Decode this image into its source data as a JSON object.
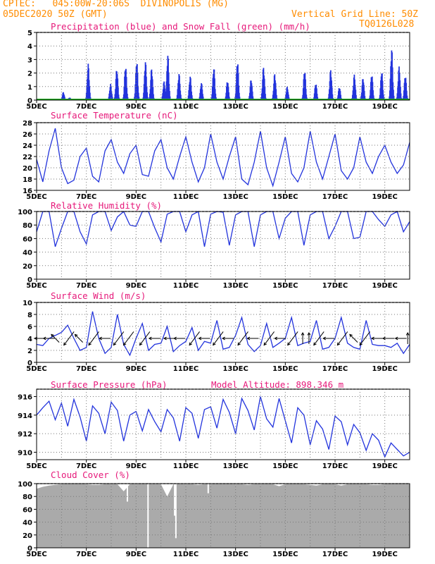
{
  "header": {
    "line1_left": "CPTEC:   045:00W-20:06S  DIVINOPOLIS (MG)",
    "line2_left": "05DEC2020 50Z (GMT)",
    "line2_right": "Vertical Grid Line: 50Z",
    "line3_right": "TQ0126L028"
  },
  "colors": {
    "series": "#2233dd",
    "snow": "#22aa22",
    "title": "#e6197a",
    "header": "#ff8c00",
    "cloud": "#aaaaaa"
  },
  "chart_data": [
    {
      "type": "bar",
      "title": "Precipitation (blue) and Snow Fall (green) (mm/h)",
      "x_tick_labels": [
        "5DEC",
        "7DEC",
        "9DEC",
        "11DEC",
        "13DEC",
        "15DEC",
        "17DEC",
        "19DEC"
      ],
      "ylim": [
        0,
        5
      ],
      "y_ticks": [
        0,
        1,
        2,
        3,
        4,
        5
      ],
      "grid": true,
      "snow_values": "all 0",
      "bursts": [
        {
          "day": 1.05,
          "peak": 0.6
        },
        {
          "day": 1.3,
          "peak": 0.2
        },
        {
          "day": 2.05,
          "peak": 2.7
        },
        {
          "day": 2.95,
          "peak": 1.2
        },
        {
          "day": 3.2,
          "peak": 2.4
        },
        {
          "day": 3.55,
          "peak": 2.6
        },
        {
          "day": 4.0,
          "peak": 3.0
        },
        {
          "day": 4.35,
          "peak": 2.9
        },
        {
          "day": 4.6,
          "peak": 2.4
        },
        {
          "day": 5.1,
          "peak": 1.4
        },
        {
          "day": 5.25,
          "peak": 3.4
        },
        {
          "day": 5.7,
          "peak": 2.0
        },
        {
          "day": 6.15,
          "peak": 1.8
        },
        {
          "day": 6.6,
          "peak": 1.3
        },
        {
          "day": 7.1,
          "peak": 2.5
        },
        {
          "day": 7.65,
          "peak": 1.5
        },
        {
          "day": 8.05,
          "peak": 3.0
        },
        {
          "day": 8.6,
          "peak": 1.6
        },
        {
          "day": 9.1,
          "peak": 2.5
        },
        {
          "day": 9.55,
          "peak": 2.0
        },
        {
          "day": 10.05,
          "peak": 1.0
        },
        {
          "day": 10.75,
          "peak": 2.3
        },
        {
          "day": 11.2,
          "peak": 1.3
        },
        {
          "day": 11.8,
          "peak": 2.3
        },
        {
          "day": 12.15,
          "peak": 1.0
        },
        {
          "day": 12.75,
          "peak": 1.9
        },
        {
          "day": 13.1,
          "peak": 1.7
        },
        {
          "day": 13.45,
          "peak": 2.0
        },
        {
          "day": 13.85,
          "peak": 2.2
        },
        {
          "day": 14.25,
          "peak": 3.9
        },
        {
          "day": 14.55,
          "peak": 2.5
        },
        {
          "day": 14.8,
          "peak": 1.9
        }
      ]
    },
    {
      "type": "line",
      "title": "Surface Temperature (nC)",
      "ylim": [
        16,
        28
      ],
      "y_ticks": [
        16,
        18,
        20,
        22,
        24,
        26,
        28
      ],
      "grid": true,
      "x_days": [
        0,
        0.25,
        0.5,
        0.75,
        1,
        1.25,
        1.5,
        1.75,
        2,
        2.25,
        2.5,
        2.75,
        3,
        3.25,
        3.5,
        3.75,
        4,
        4.25,
        4.5,
        4.75,
        5,
        5.25,
        5.5,
        5.75,
        6,
        6.25,
        6.5,
        6.75,
        7,
        7.25,
        7.5,
        7.75,
        8,
        8.25,
        8.5,
        8.75,
        9,
        9.25,
        9.5,
        9.75,
        10,
        10.25,
        10.5,
        10.75,
        11,
        11.25,
        11.5,
        11.75,
        12,
        12.25,
        12.5,
        12.75,
        13,
        13.25,
        13.5,
        13.75,
        14,
        14.25,
        14.5,
        14.75,
        15
      ],
      "values": [
        21.5,
        17.5,
        23,
        27,
        20,
        17.2,
        17.8,
        22,
        23.5,
        18.5,
        17.5,
        23,
        25,
        21,
        19,
        22.5,
        24,
        18.8,
        18.5,
        23,
        25,
        20,
        18,
        22,
        25.5,
        21,
        17.5,
        20,
        26,
        21,
        18,
        22,
        25.5,
        18,
        17,
        21,
        26.5,
        20,
        16.8,
        21,
        25.5,
        19,
        17.5,
        20,
        26.5,
        21,
        18,
        22,
        26,
        19.5,
        18,
        20,
        25.5,
        21,
        19,
        22,
        24,
        21,
        19,
        20.5,
        24.5
      ]
    },
    {
      "type": "line",
      "title": "Relative Humidity (%)",
      "ylim": [
        0,
        100
      ],
      "y_ticks": [
        0,
        20,
        40,
        60,
        80,
        100
      ],
      "grid": true,
      "x_days": [
        0,
        0.25,
        0.5,
        0.75,
        1,
        1.25,
        1.5,
        1.75,
        2,
        2.25,
        2.5,
        2.75,
        3,
        3.25,
        3.5,
        3.75,
        4,
        4.25,
        4.5,
        4.75,
        5,
        5.25,
        5.5,
        5.75,
        6,
        6.25,
        6.5,
        6.75,
        7,
        7.25,
        7.5,
        7.75,
        8,
        8.25,
        8.5,
        8.75,
        9,
        9.25,
        9.5,
        9.75,
        10,
        10.25,
        10.5,
        10.75,
        11,
        11.25,
        11.5,
        11.75,
        12,
        12.25,
        12.5,
        12.75,
        13,
        13.25,
        13.5,
        13.75,
        14,
        14.25,
        14.5,
        14.75,
        15
      ],
      "values": [
        70,
        100,
        100,
        48,
        75,
        100,
        100,
        70,
        52,
        95,
        100,
        100,
        72,
        92,
        100,
        80,
        78,
        100,
        100,
        76,
        55,
        96,
        100,
        100,
        70,
        95,
        100,
        48,
        96,
        100,
        99,
        50,
        95,
        100,
        100,
        48,
        95,
        100,
        100,
        60,
        90,
        100,
        100,
        50,
        95,
        100,
        100,
        60,
        78,
        100,
        100,
        60,
        62,
        100,
        100,
        88,
        78,
        95,
        100,
        70,
        85
      ]
    },
    {
      "type": "line",
      "title": "Surface Wind (m/s)",
      "ylim": [
        0,
        10
      ],
      "y_ticks": [
        0,
        2,
        4,
        6,
        8,
        10
      ],
      "grid": true,
      "x_days": [
        0,
        0.25,
        0.5,
        0.75,
        1,
        1.25,
        1.5,
        1.75,
        2,
        2.25,
        2.5,
        2.75,
        3,
        3.25,
        3.5,
        3.75,
        4,
        4.25,
        4.5,
        4.75,
        5,
        5.25,
        5.5,
        5.75,
        6,
        6.25,
        6.5,
        6.75,
        7,
        7.25,
        7.5,
        7.75,
        8,
        8.25,
        8.5,
        8.75,
        9,
        9.25,
        9.5,
        9.75,
        10,
        10.25,
        10.5,
        10.75,
        11,
        11.25,
        11.5,
        11.75,
        12,
        12.25,
        12.5,
        12.75,
        13,
        13.25,
        13.5,
        13.75,
        14,
        14.25,
        14.5,
        14.75,
        15
      ],
      "values": [
        3,
        2.8,
        4,
        4.5,
        5,
        6.2,
        4,
        2,
        2.5,
        8.5,
        4,
        1.5,
        2.5,
        8,
        3,
        1.2,
        4,
        6.5,
        2,
        3,
        3.2,
        6,
        1.8,
        2.8,
        3.5,
        5.8,
        2,
        3.5,
        3.2,
        7,
        2.2,
        2.5,
        4.5,
        7.5,
        3,
        1.8,
        2.8,
        6.5,
        2.5,
        3.2,
        4,
        7.5,
        2.8,
        3.2,
        3.5,
        7,
        2.2,
        2.5,
        4,
        7.5,
        3.2,
        2.5,
        2.2,
        7,
        3,
        2.8,
        2.8,
        2.5,
        3.2,
        1.5,
        3
      ],
      "arrows": [
        {
          "day": 0.15,
          "dir": "W"
        },
        {
          "day": 0.5,
          "dir": "W"
        },
        {
          "day": 0.75,
          "dir": "NW"
        },
        {
          "day": 1.3,
          "dir": "SW"
        },
        {
          "day": 1.7,
          "dir": "NW"
        },
        {
          "day": 2.3,
          "dir": "SW"
        },
        {
          "day": 2.75,
          "dir": "W"
        },
        {
          "day": 3.3,
          "dir": "SW"
        },
        {
          "day": 3.7,
          "dir": "SW"
        },
        {
          "day": 4.35,
          "dir": "SW"
        },
        {
          "day": 4.75,
          "dir": "W"
        },
        {
          "day": 5.35,
          "dir": "W"
        },
        {
          "day": 5.75,
          "dir": "W"
        },
        {
          "day": 6.35,
          "dir": "SW"
        },
        {
          "day": 6.75,
          "dir": "W"
        },
        {
          "day": 7.3,
          "dir": "SW"
        },
        {
          "day": 7.7,
          "dir": "W"
        },
        {
          "day": 8.3,
          "dir": "SW"
        },
        {
          "day": 8.7,
          "dir": "W"
        },
        {
          "day": 9.35,
          "dir": "SW"
        },
        {
          "day": 9.8,
          "dir": "W"
        },
        {
          "day": 10.3,
          "dir": "SW"
        },
        {
          "day": 10.7,
          "dir": "N"
        },
        {
          "day": 10.95,
          "dir": "N"
        },
        {
          "day": 11.35,
          "dir": "SW"
        },
        {
          "day": 11.75,
          "dir": "W"
        },
        {
          "day": 12.3,
          "dir": "SW"
        },
        {
          "day": 12.75,
          "dir": "NW"
        },
        {
          "day": 13.2,
          "dir": "SW"
        },
        {
          "day": 13.7,
          "dir": "W"
        },
        {
          "day": 14.15,
          "dir": "W"
        },
        {
          "day": 14.65,
          "dir": "W"
        },
        {
          "day": 14.92,
          "dir": "N"
        }
      ]
    },
    {
      "type": "line",
      "title": "Surface Pressure (hPa)",
      "annotation": "Model Altitude: 898.346 m",
      "ylim": [
        909.2,
        916.8
      ],
      "y_ticks": [
        910,
        912,
        914,
        916
      ],
      "grid": true,
      "x_days": [
        0,
        0.25,
        0.5,
        0.75,
        1,
        1.25,
        1.5,
        1.75,
        2,
        2.25,
        2.5,
        2.75,
        3,
        3.25,
        3.5,
        3.75,
        4,
        4.25,
        4.5,
        4.75,
        5,
        5.25,
        5.5,
        5.75,
        6,
        6.25,
        6.5,
        6.75,
        7,
        7.25,
        7.5,
        7.75,
        8,
        8.25,
        8.5,
        8.75,
        9,
        9.25,
        9.5,
        9.75,
        10,
        10.25,
        10.5,
        10.75,
        11,
        11.25,
        11.5,
        11.75,
        12,
        12.25,
        12.5,
        12.75,
        13,
        13.25,
        13.5,
        13.75,
        14,
        14.25,
        14.5,
        14.75,
        15
      ],
      "values": [
        914,
        914.8,
        915.5,
        913.5,
        915.3,
        912.8,
        915.7,
        913.8,
        911.2,
        915,
        914.2,
        912,
        915.4,
        914.5,
        911.2,
        914,
        914.4,
        912.3,
        914.6,
        913.3,
        912.2,
        914.6,
        913.7,
        911.2,
        914.8,
        914.2,
        911.5,
        914.6,
        914.9,
        912.6,
        915.7,
        914.3,
        912,
        915.8,
        914.5,
        912.4,
        916,
        913.6,
        912.7,
        915.8,
        913.4,
        911,
        914.8,
        914,
        910.8,
        913.4,
        912.5,
        910.3,
        913.9,
        913.3,
        910.8,
        913,
        912.1,
        910.2,
        912,
        911.3,
        909.5,
        911,
        910.3,
        909.6,
        910
      ]
    },
    {
      "type": "area",
      "title": "Cloud Cover (%)",
      "ylim": [
        0,
        100
      ],
      "y_ticks": [
        0,
        20,
        40,
        60,
        80,
        100
      ],
      "grid": true,
      "x_days": [
        0,
        0.25,
        0.5,
        0.75,
        1,
        1.25,
        1.5,
        1.75,
        2,
        2.25,
        2.5,
        2.75,
        3,
        3.25,
        3.5,
        3.75,
        4,
        4.25,
        4.5,
        4.75,
        5,
        5.25,
        5.5,
        5.75,
        6,
        6.25,
        6.5,
        6.75,
        7,
        7.25,
        7.5,
        7.75,
        8,
        8.25,
        8.5,
        8.75,
        9,
        9.25,
        9.5,
        9.75,
        10,
        10.25,
        10.5,
        10.75,
        11,
        11.25,
        11.5,
        11.75,
        12,
        12.25,
        12.5,
        12.75,
        13,
        13.25,
        13.5,
        13.75,
        14,
        14.25,
        14.5,
        14.75,
        15
      ],
      "values": [
        92,
        95,
        97,
        98,
        99,
        99,
        99,
        99,
        99,
        98,
        98,
        99,
        99,
        99,
        88,
        99,
        99,
        99,
        99,
        99,
        99,
        80,
        99,
        99,
        99,
        99,
        98,
        99,
        99,
        99,
        99,
        99,
        99,
        99,
        98,
        99,
        99,
        99,
        99,
        96,
        99,
        99,
        99,
        99,
        98,
        97,
        99,
        99,
        99,
        97,
        99,
        99,
        99,
        99,
        98,
        98,
        99,
        99,
        99,
        99,
        99
      ],
      "dips": [
        {
          "day": 4.48,
          "value": 0
        },
        {
          "day": 5.55,
          "value": 50
        },
        {
          "day": 5.6,
          "value": 15
        },
        {
          "day": 3.65,
          "value": 72
        },
        {
          "day": 6.9,
          "value": 85
        }
      ]
    }
  ]
}
